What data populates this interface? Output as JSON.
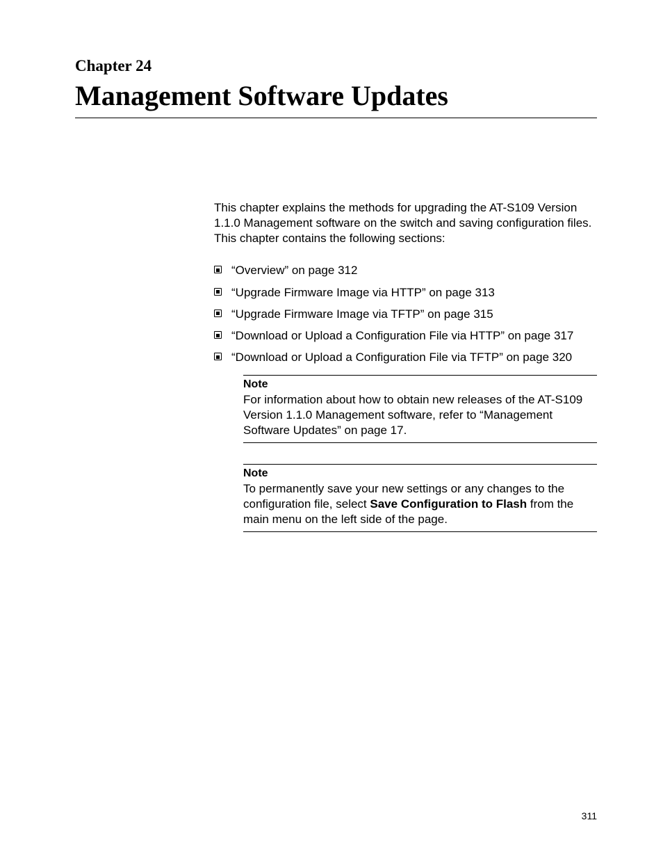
{
  "chapter": {
    "label": "Chapter 24",
    "title": "Management Software Updates"
  },
  "intro": "This chapter explains the methods for upgrading the AT-S109 Version 1.1.0  Management software on the switch and saving configuration files. This chapter contains the following sections:",
  "toc": [
    "“Overview” on page 312",
    "“Upgrade Firmware Image via HTTP” on page 313",
    "“Upgrade Firmware Image via TFTP” on page 315",
    "“Download or Upload a Configuration File via HTTP” on page 317",
    "“Download or Upload a Configuration File via TFTP” on page 320"
  ],
  "notes": [
    {
      "label": "Note",
      "body_pre": "For information about how to obtain new releases of the AT-S109 Version 1.1.0  Management software, refer to “Management Software Updates” on page 17.",
      "bold": "",
      "body_post": ""
    },
    {
      "label": "Note",
      "body_pre": "To permanently save your new settings or any changes to the configuration file, select ",
      "bold": "Save Configuration to Flash",
      "body_post": " from the main menu on the left side of the page."
    }
  ],
  "page_number": "311",
  "colors": {
    "text": "#000000",
    "background": "#ffffff",
    "rule": "#000000"
  },
  "fonts": {
    "heading_family": "Times New Roman",
    "body_family": "Arial",
    "chapter_label_size_pt": 17,
    "chapter_title_size_pt": 30,
    "body_size_pt": 13,
    "note_label_size_pt": 12,
    "page_number_size_pt": 10
  }
}
